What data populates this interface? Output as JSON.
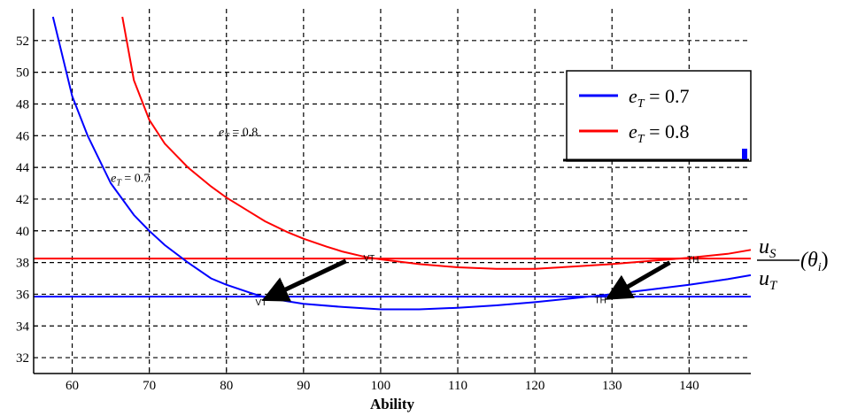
{
  "chart_data": {
    "type": "line",
    "xlabel": "Ability",
    "ylabel": "",
    "xlim": [
      55,
      148
    ],
    "ylim": [
      31,
      54
    ],
    "x_ticks": [
      60,
      70,
      80,
      90,
      100,
      110,
      120,
      130,
      140
    ],
    "y_ticks": [
      32,
      34,
      36,
      38,
      40,
      42,
      44,
      46,
      48,
      50,
      52
    ],
    "grid": true,
    "legend_placement": "top-right",
    "series": [
      {
        "name": "e_T = 0.7",
        "color": "#0000ff",
        "x": [
          57.5,
          60,
          62,
          65,
          68,
          70,
          72,
          75,
          78,
          80,
          83,
          85,
          88,
          90,
          95,
          100,
          105,
          110,
          115,
          120,
          125,
          130,
          135,
          140,
          145,
          148
        ],
        "y": [
          53.5,
          48.5,
          46.0,
          43.0,
          41.0,
          40.0,
          39.1,
          38.0,
          37.0,
          36.6,
          36.1,
          35.8,
          35.55,
          35.4,
          35.2,
          35.05,
          35.05,
          35.15,
          35.3,
          35.5,
          35.75,
          36.0,
          36.3,
          36.6,
          36.95,
          37.2
        ]
      },
      {
        "name": "e_T = 0.8",
        "color": "#ff0000",
        "x": [
          66.5,
          68,
          70,
          72,
          75,
          78,
          80,
          83,
          85,
          88,
          90,
          93,
          95,
          98,
          100,
          105,
          110,
          115,
          120,
          125,
          130,
          135,
          140,
          145,
          148
        ],
        "y": [
          53.5,
          49.5,
          47.0,
          45.5,
          44.0,
          42.8,
          42.1,
          41.2,
          40.6,
          39.9,
          39.5,
          39.0,
          38.7,
          38.35,
          38.2,
          37.9,
          37.7,
          37.6,
          37.6,
          37.75,
          37.9,
          38.1,
          38.3,
          38.55,
          38.8
        ]
      }
    ],
    "reference_lines": [
      {
        "y": 38.25,
        "color": "#ff0000"
      },
      {
        "y": 35.85,
        "color": "#0000ff"
      }
    ],
    "arrows": [
      {
        "from": [
          95.5,
          38.1
        ],
        "to": [
          85.5,
          35.8
        ]
      },
      {
        "from": [
          137.5,
          38.0
        ],
        "to": [
          130.0,
          35.9
        ]
      }
    ],
    "annotations": [
      {
        "label_main": "e",
        "label_sub": "T",
        "label_rest": " = 0.7",
        "x": 65,
        "y": 43.1
      },
      {
        "label_main": "e",
        "label_sub": "T",
        "label_rest": " = 0.8",
        "x": 79,
        "y": 46.0
      }
    ],
    "markers": [
      {
        "text": "VT",
        "x": 98.5,
        "y": 38.1
      },
      {
        "text": "VT",
        "x": 84.5,
        "y": 35.3
      },
      {
        "text": "TH",
        "x": 140.5,
        "y": 38.0
      },
      {
        "text": "TH",
        "x": 128.5,
        "y": 35.45
      }
    ],
    "ratio_label": {
      "numerator_main": "u",
      "numerator_sub": "S",
      "denominator_main": "u",
      "denominator_sub": "T",
      "argument": "(θ",
      "argument_sub": "i",
      "argument_close": ")"
    },
    "legend": [
      {
        "main": "e",
        "sub": "T",
        "rest": " = 0.7",
        "color": "#0000ff"
      },
      {
        "main": "e",
        "sub": "T",
        "rest": " = 0.8",
        "color": "#ff0000"
      }
    ]
  }
}
